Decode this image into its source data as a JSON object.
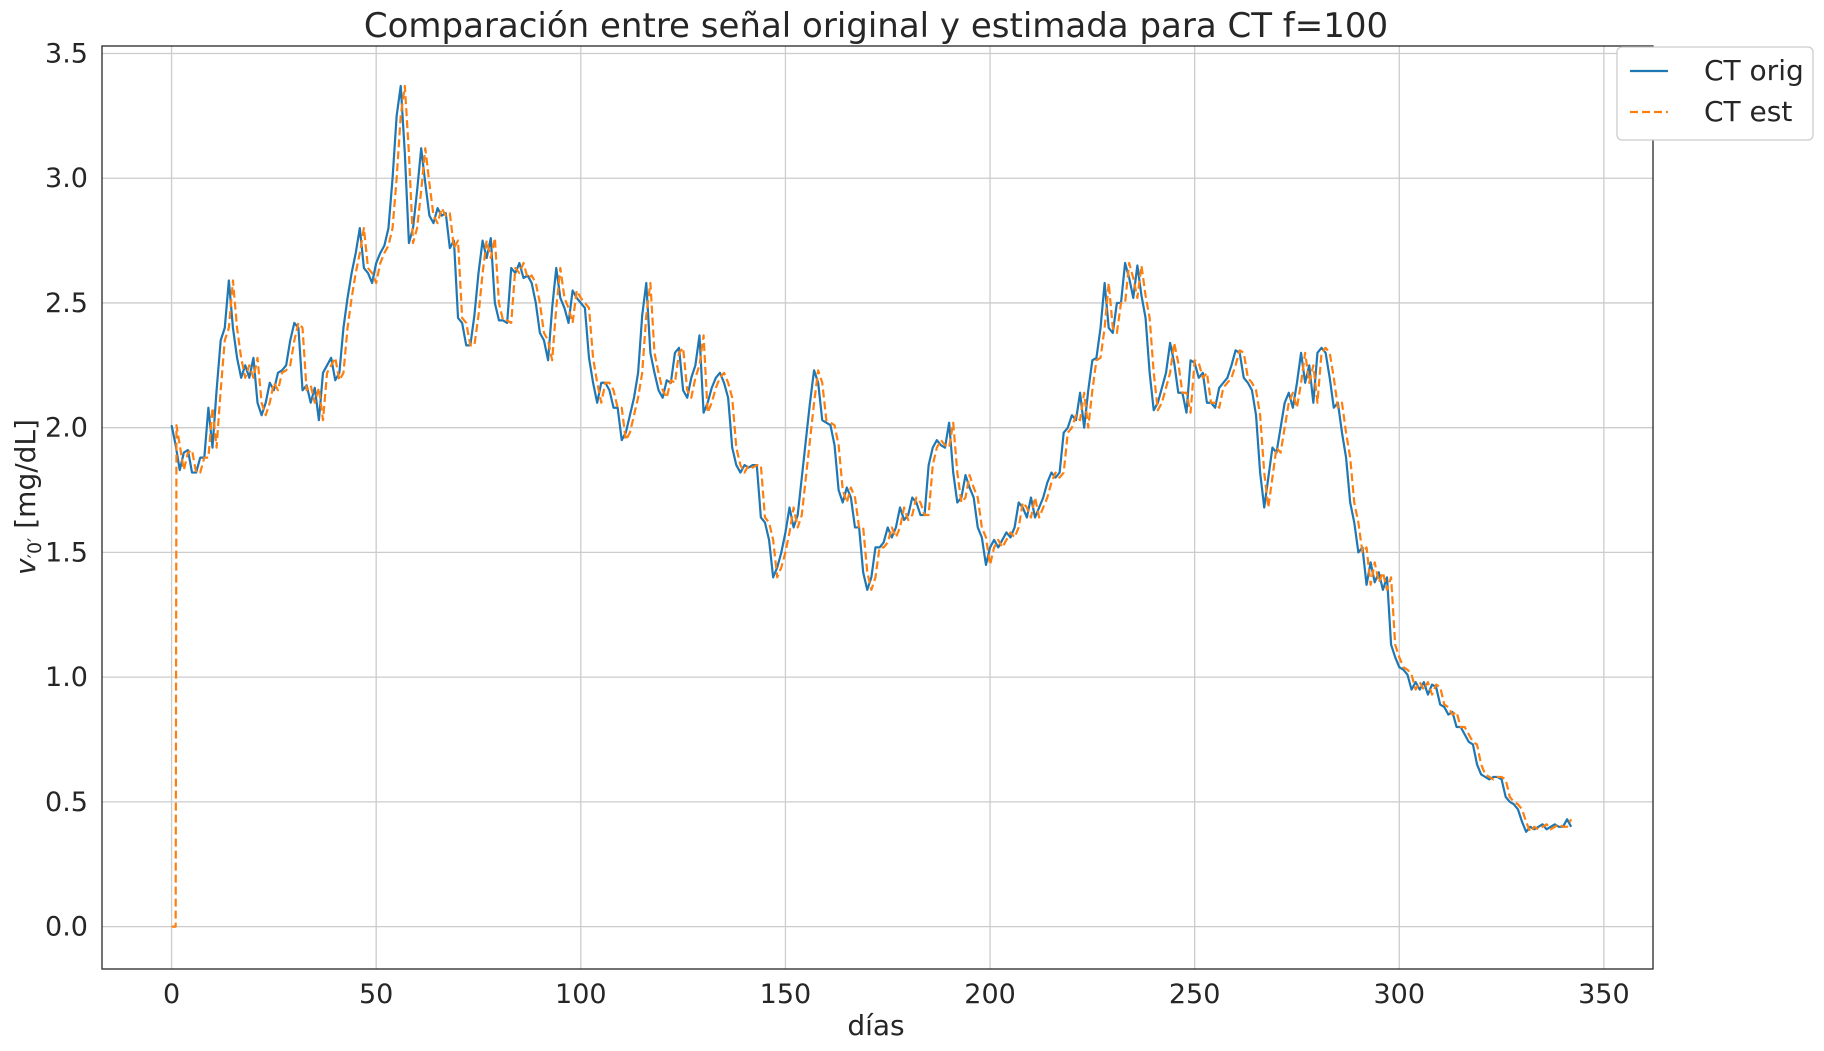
{
  "chart_data": {
    "type": "line",
    "title": "Comparación entre señal original y estimada para CT f=100",
    "xlabel": "días",
    "ylabel": "v ′0′ [mg/dL]",
    "ylabel_main": "v",
    "ylabel_sub": "′0′",
    "ylabel_unit": " [mg/dL]",
    "xlim": [
      -17,
      362
    ],
    "ylim": [
      -0.17,
      3.53
    ],
    "xticks": [
      0,
      50,
      100,
      150,
      200,
      250,
      300,
      350
    ],
    "xtick_labels": [
      "0",
      "50",
      "100",
      "150",
      "200",
      "250",
      "300",
      "350"
    ],
    "yticks": [
      0.0,
      0.5,
      1.0,
      1.5,
      2.0,
      2.5,
      3.0,
      3.5
    ],
    "ytick_labels": [
      "0.0",
      "0.5",
      "1.0",
      "1.5",
      "2.0",
      "2.5",
      "3.0",
      "3.5"
    ],
    "grid": true,
    "legend_position": "outside-top-right",
    "x_step": 1,
    "estimate_lag": 1,
    "series": [
      {
        "name": "CT orig",
        "color": "#1f77b4",
        "style": "solid",
        "y": [
          2.01,
          1.93,
          1.83,
          1.9,
          1.91,
          1.82,
          1.82,
          1.88,
          1.88,
          2.08,
          1.92,
          2.15,
          2.35,
          2.4,
          2.59,
          2.4,
          2.28,
          2.2,
          2.25,
          2.2,
          2.28,
          2.1,
          2.05,
          2.1,
          2.18,
          2.15,
          2.22,
          2.23,
          2.25,
          2.35,
          2.42,
          2.4,
          2.15,
          2.17,
          2.1,
          2.16,
          2.03,
          2.22,
          2.25,
          2.28,
          2.19,
          2.22,
          2.4,
          2.52,
          2.62,
          2.7,
          2.8,
          2.64,
          2.62,
          2.58,
          2.66,
          2.7,
          2.73,
          2.8,
          3.0,
          3.25,
          3.37,
          3.1,
          2.74,
          2.8,
          2.95,
          3.12,
          2.98,
          2.85,
          2.82,
          2.88,
          2.85,
          2.86,
          2.72,
          2.75,
          2.44,
          2.42,
          2.33,
          2.33,
          2.45,
          2.62,
          2.75,
          2.68,
          2.76,
          2.5,
          2.43,
          2.43,
          2.42,
          2.64,
          2.62,
          2.66,
          2.6,
          2.61,
          2.58,
          2.5,
          2.38,
          2.35,
          2.27,
          2.48,
          2.64,
          2.52,
          2.48,
          2.42,
          2.55,
          2.52,
          2.5,
          2.48,
          2.28,
          2.18,
          2.1,
          2.18,
          2.18,
          2.15,
          2.08,
          2.08,
          1.95,
          1.98,
          2.05,
          2.12,
          2.22,
          2.45,
          2.58,
          2.3,
          2.22,
          2.15,
          2.12,
          2.19,
          2.18,
          2.3,
          2.32,
          2.15,
          2.12,
          2.2,
          2.25,
          2.37,
          2.06,
          2.1,
          2.16,
          2.2,
          2.22,
          2.18,
          2.12,
          1.92,
          1.85,
          1.82,
          1.85,
          1.84,
          1.85,
          1.85,
          1.64,
          1.62,
          1.55,
          1.4,
          1.44,
          1.5,
          1.58,
          1.68,
          1.6,
          1.65,
          1.8,
          1.95,
          2.1,
          2.23,
          2.18,
          2.03,
          2.02,
          2.01,
          1.93,
          1.75,
          1.7,
          1.76,
          1.72,
          1.6,
          1.6,
          1.42,
          1.35,
          1.4,
          1.52,
          1.52,
          1.54,
          1.6,
          1.56,
          1.6,
          1.68,
          1.63,
          1.65,
          1.72,
          1.7,
          1.65,
          1.65,
          1.85,
          1.92,
          1.95,
          1.93,
          1.92,
          2.02,
          1.82,
          1.7,
          1.72,
          1.81,
          1.76,
          1.72,
          1.6,
          1.56,
          1.45,
          1.52,
          1.55,
          1.52,
          1.55,
          1.58,
          1.56,
          1.6,
          1.7,
          1.68,
          1.64,
          1.72,
          1.64,
          1.68,
          1.72,
          1.78,
          1.82,
          1.8,
          1.82,
          1.98,
          2.0,
          2.05,
          2.03,
          2.14,
          2.0,
          2.15,
          2.27,
          2.28,
          2.4,
          2.58,
          2.4,
          2.38,
          2.5,
          2.5,
          2.66,
          2.6,
          2.52,
          2.65,
          2.53,
          2.44,
          2.22,
          2.07,
          2.1,
          2.16,
          2.22,
          2.34,
          2.26,
          2.14,
          2.14,
          2.06,
          2.27,
          2.26,
          2.2,
          2.22,
          2.1,
          2.1,
          2.08,
          2.16,
          2.18,
          2.2,
          2.25,
          2.31,
          2.3,
          2.2,
          2.18,
          2.15,
          2.05,
          1.82,
          1.68,
          1.8,
          1.92,
          1.9,
          2.0,
          2.1,
          2.14,
          2.08,
          2.18,
          2.3,
          2.18,
          2.25,
          2.1,
          2.3,
          2.32,
          2.3,
          2.2,
          2.08,
          2.1,
          1.98,
          1.88,
          1.7,
          1.62,
          1.5,
          1.52,
          1.37,
          1.46,
          1.38,
          1.42,
          1.35,
          1.4,
          1.13,
          1.08,
          1.04,
          1.03,
          1.01,
          0.95,
          0.98,
          0.95,
          0.98,
          0.93,
          0.97,
          0.96,
          0.89,
          0.88,
          0.85,
          0.86,
          0.8,
          0.8,
          0.77,
          0.74,
          0.73,
          0.65,
          0.61,
          0.6,
          0.59,
          0.6,
          0.6,
          0.59,
          0.52,
          0.5,
          0.49,
          0.47,
          0.42,
          0.38,
          0.4,
          0.39,
          0.4,
          0.41,
          0.39,
          0.4,
          0.41,
          0.4,
          0.4,
          0.43,
          0.4
        ]
      },
      {
        "name": "CT est",
        "color": "#ff7f0e",
        "style": "dashed",
        "y_start": [
          0.0,
          0.0
        ]
      }
    ]
  }
}
